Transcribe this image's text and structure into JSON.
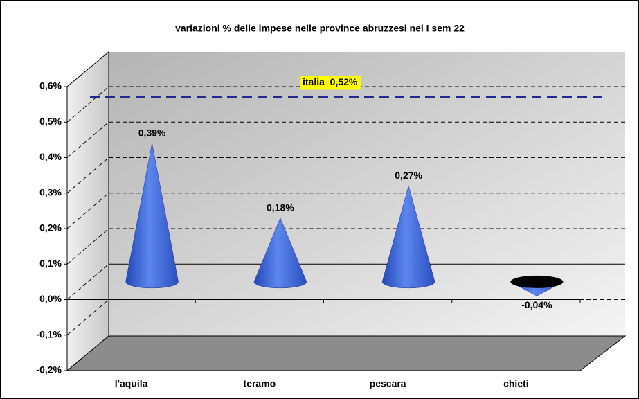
{
  "chart_data": {
    "type": "cone",
    "title": "variazioni % delle impese nelle province abruzzesi nel I sem 22",
    "categories": [
      "l'aquila",
      "teramo",
      "pescara",
      "chieti"
    ],
    "values": [
      0.39,
      0.18,
      0.27,
      -0.04
    ],
    "value_labels": [
      "0,39%",
      "0,18%",
      "0,27%",
      "-0,04%"
    ],
    "color": "#3a66d6",
    "ylim": [
      -0.2,
      0.6
    ],
    "yticks": [
      {
        "value": -0.2,
        "label": "-0,2%"
      },
      {
        "value": -0.1,
        "label": "-0,1%"
      },
      {
        "value": 0,
        "label": "0,0%"
      },
      {
        "value": 0.1,
        "label": "0,1%"
      },
      {
        "value": 0.2,
        "label": "0,2%"
      },
      {
        "value": 0.3,
        "label": "0,3%"
      },
      {
        "value": 0.4,
        "label": "0,4%"
      },
      {
        "value": 0.5,
        "label": "0,5%"
      },
      {
        "value": 0.6,
        "label": "0,6%"
      }
    ],
    "grid": true,
    "reference": {
      "value": 0.52,
      "label": "italia  0,52%",
      "color": "#1f2a8c"
    }
  }
}
